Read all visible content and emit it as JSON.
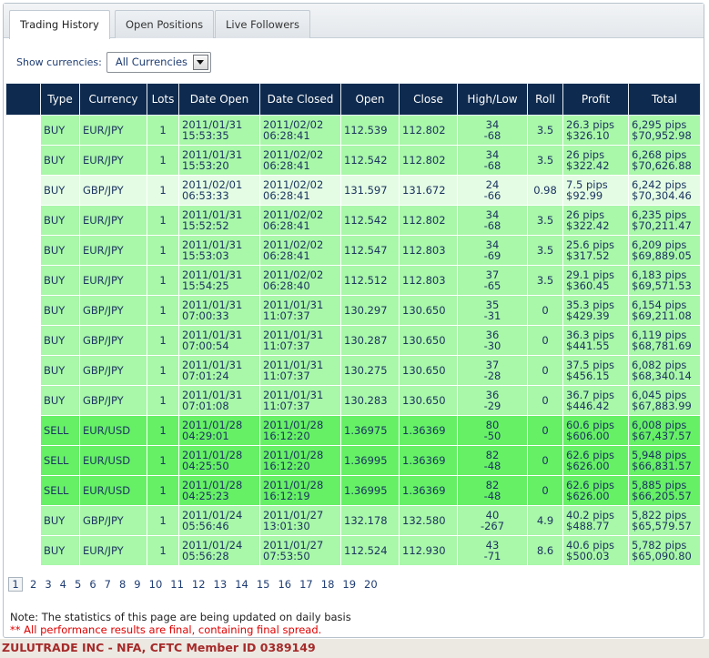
{
  "tabs": [
    {
      "label": "Trading History",
      "active": true
    },
    {
      "label": "Open Positions",
      "active": false
    },
    {
      "label": "Live Followers",
      "active": false
    }
  ],
  "filter": {
    "label": "Show currencies:",
    "selected": "All Currencies"
  },
  "columns": [
    "",
    "Type",
    "Currency",
    "Lots",
    "Date Open",
    "Date Closed",
    "Open",
    "Close",
    "High/Low",
    "Roll",
    "Profit",
    "Total"
  ],
  "rows": [
    {
      "type": "BUY",
      "currency": "EUR/JPY",
      "lots": "1",
      "date_open": "2011/01/31",
      "time_open": "15:53:35",
      "date_closed": "2011/02/02",
      "time_closed": "06:28:41",
      "open": "112.539",
      "close": "112.802",
      "high": "34",
      "low": "-68",
      "roll": "3.5",
      "profit_pips": "26.3 pips",
      "profit_usd": "$326.10",
      "total_pips": "6,295 pips",
      "total_usd": "$70,952.98"
    },
    {
      "type": "BUY",
      "currency": "EUR/JPY",
      "lots": "1",
      "date_open": "2011/01/31",
      "time_open": "15:53:20",
      "date_closed": "2011/02/02",
      "time_closed": "06:28:41",
      "open": "112.542",
      "close": "112.802",
      "high": "34",
      "low": "-68",
      "roll": "3.5",
      "profit_pips": "26 pips",
      "profit_usd": "$322.42",
      "total_pips": "6,268 pips",
      "total_usd": "$70,626.88"
    },
    {
      "type": "BUY",
      "currency": "GBP/JPY",
      "lots": "1",
      "date_open": "2011/02/01",
      "time_open": "06:53:33",
      "date_closed": "2011/02/02",
      "time_closed": "06:28:41",
      "open": "131.597",
      "close": "131.672",
      "high": "24",
      "low": "-66",
      "roll": "0.98",
      "profit_pips": "7.5 pips",
      "profit_usd": "$92.99",
      "total_pips": "6,242 pips",
      "total_usd": "$70,304.46"
    },
    {
      "type": "BUY",
      "currency": "EUR/JPY",
      "lots": "1",
      "date_open": "2011/01/31",
      "time_open": "15:52:52",
      "date_closed": "2011/02/02",
      "time_closed": "06:28:41",
      "open": "112.542",
      "close": "112.802",
      "high": "34",
      "low": "-68",
      "roll": "3.5",
      "profit_pips": "26 pips",
      "profit_usd": "$322.42",
      "total_pips": "6,235 pips",
      "total_usd": "$70,211.47"
    },
    {
      "type": "BUY",
      "currency": "EUR/JPY",
      "lots": "1",
      "date_open": "2011/01/31",
      "time_open": "15:53:03",
      "date_closed": "2011/02/02",
      "time_closed": "06:28:41",
      "open": "112.547",
      "close": "112.803",
      "high": "34",
      "low": "-69",
      "roll": "3.5",
      "profit_pips": "25.6 pips",
      "profit_usd": "$317.52",
      "total_pips": "6,209 pips",
      "total_usd": "$69,889.05"
    },
    {
      "type": "BUY",
      "currency": "EUR/JPY",
      "lots": "1",
      "date_open": "2011/01/31",
      "time_open": "15:54:25",
      "date_closed": "2011/02/02",
      "time_closed": "06:28:40",
      "open": "112.512",
      "close": "112.803",
      "high": "37",
      "low": "-65",
      "roll": "3.5",
      "profit_pips": "29.1 pips",
      "profit_usd": "$360.45",
      "total_pips": "6,183 pips",
      "total_usd": "$69,571.53"
    },
    {
      "type": "BUY",
      "currency": "GBP/JPY",
      "lots": "1",
      "date_open": "2011/01/31",
      "time_open": "07:00:33",
      "date_closed": "2011/01/31",
      "time_closed": "11:07:37",
      "open": "130.297",
      "close": "130.650",
      "high": "35",
      "low": "-31",
      "roll": "0",
      "profit_pips": "35.3 pips",
      "profit_usd": "$429.39",
      "total_pips": "6,154 pips",
      "total_usd": "$69,211.08"
    },
    {
      "type": "BUY",
      "currency": "GBP/JPY",
      "lots": "1",
      "date_open": "2011/01/31",
      "time_open": "07:00:54",
      "date_closed": "2011/01/31",
      "time_closed": "11:07:37",
      "open": "130.287",
      "close": "130.650",
      "high": "36",
      "low": "-30",
      "roll": "0",
      "profit_pips": "36.3 pips",
      "profit_usd": "$441.55",
      "total_pips": "6,119 pips",
      "total_usd": "$68,781.69"
    },
    {
      "type": "BUY",
      "currency": "GBP/JPY",
      "lots": "1",
      "date_open": "2011/01/31",
      "time_open": "07:01:24",
      "date_closed": "2011/01/31",
      "time_closed": "11:07:37",
      "open": "130.275",
      "close": "130.650",
      "high": "37",
      "low": "-28",
      "roll": "0",
      "profit_pips": "37.5 pips",
      "profit_usd": "$456.15",
      "total_pips": "6,082 pips",
      "total_usd": "$68,340.14"
    },
    {
      "type": "BUY",
      "currency": "GBP/JPY",
      "lots": "1",
      "date_open": "2011/01/31",
      "time_open": "07:01:08",
      "date_closed": "2011/01/31",
      "time_closed": "11:07:37",
      "open": "130.283",
      "close": "130.650",
      "high": "36",
      "low": "-29",
      "roll": "0",
      "profit_pips": "36.7 pips",
      "profit_usd": "$446.42",
      "total_pips": "6,045 pips",
      "total_usd": "$67,883.99"
    },
    {
      "type": "SELL",
      "currency": "EUR/USD",
      "lots": "1",
      "date_open": "2011/01/28",
      "time_open": "04:29:01",
      "date_closed": "2011/01/28",
      "time_closed": "16:12:20",
      "open": "1.36975",
      "close": "1.36369",
      "high": "80",
      "low": "-50",
      "roll": "0",
      "profit_pips": "60.6 pips",
      "profit_usd": "$606.00",
      "total_pips": "6,008 pips",
      "total_usd": "$67,437.57"
    },
    {
      "type": "SELL",
      "currency": "EUR/USD",
      "lots": "1",
      "date_open": "2011/01/28",
      "time_open": "04:25:50",
      "date_closed": "2011/01/28",
      "time_closed": "16:12:20",
      "open": "1.36995",
      "close": "1.36369",
      "high": "82",
      "low": "-48",
      "roll": "0",
      "profit_pips": "62.6 pips",
      "profit_usd": "$626.00",
      "total_pips": "5,948 pips",
      "total_usd": "$66,831.57"
    },
    {
      "type": "SELL",
      "currency": "EUR/USD",
      "lots": "1",
      "date_open": "2011/01/28",
      "time_open": "04:25:23",
      "date_closed": "2011/01/28",
      "time_closed": "16:12:19",
      "open": "1.36995",
      "close": "1.36369",
      "high": "82",
      "low": "-48",
      "roll": "0",
      "profit_pips": "62.6 pips",
      "profit_usd": "$626.00",
      "total_pips": "5,885 pips",
      "total_usd": "$66,205.57"
    },
    {
      "type": "BUY",
      "currency": "GBP/JPY",
      "lots": "1",
      "date_open": "2011/01/24",
      "time_open": "05:56:46",
      "date_closed": "2011/01/27",
      "time_closed": "13:01:30",
      "open": "132.178",
      "close": "132.580",
      "high": "40",
      "low": "-267",
      "roll": "4.9",
      "profit_pips": "40.2 pips",
      "profit_usd": "$488.77",
      "total_pips": "5,822 pips",
      "total_usd": "$65,579.57"
    },
    {
      "type": "BUY",
      "currency": "EUR/JPY",
      "lots": "1",
      "date_open": "2011/01/24",
      "time_open": "05:56:28",
      "date_closed": "2011/01/27",
      "time_closed": "07:53:50",
      "open": "112.524",
      "close": "112.930",
      "high": "43",
      "low": "-71",
      "roll": "8.6",
      "profit_pips": "40.6 pips",
      "profit_usd": "$500.03",
      "total_pips": "5,782 pips",
      "total_usd": "$65,090.80"
    }
  ],
  "pagination": {
    "current": "1",
    "pages": [
      "1",
      "2",
      "3",
      "4",
      "5",
      "6",
      "7",
      "8",
      "9",
      "10",
      "11",
      "12",
      "13",
      "14",
      "15",
      "16",
      "17",
      "18",
      "19",
      "20"
    ]
  },
  "note": "Note: The statistics of this page are being updated on daily basis",
  "disclaimer": "** All performance results are final, containing final spread.",
  "footer": "ZULUTRADE INC - NFA, CFTC Member ID 0389149",
  "colors": {
    "header_bg": "#0e2a4e",
    "buy_row": "#a9f7a9",
    "buy_row_light": "#e4fce4",
    "sell_row": "#66f066",
    "footer_text": "#a52a2a",
    "disclaimer_text": "#e00000"
  }
}
